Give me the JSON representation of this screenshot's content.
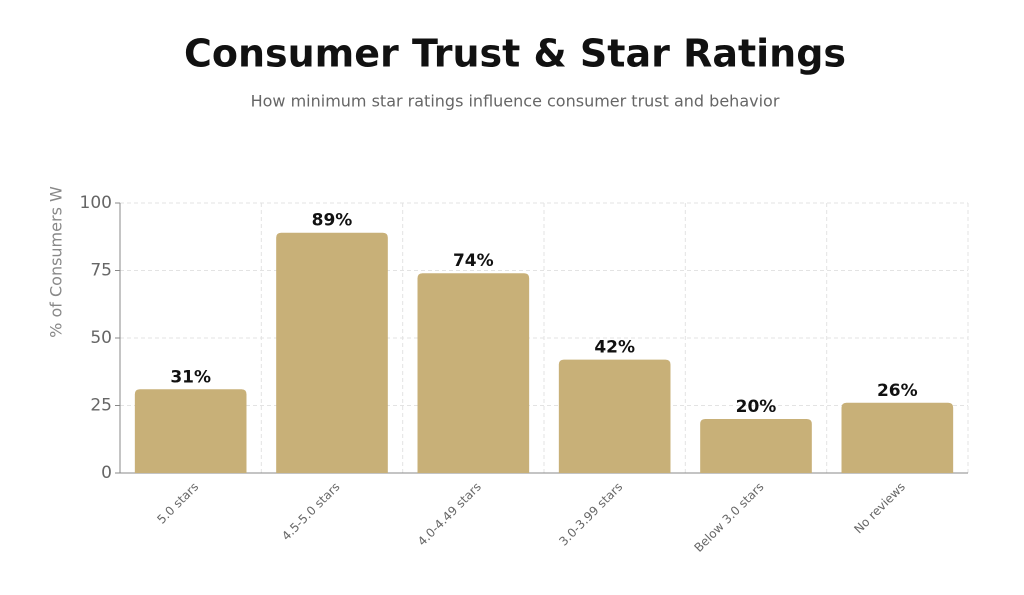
{
  "chart_data": {
    "type": "bar",
    "title": "Consumer Trust & Star Ratings",
    "subtitle": "How minimum star ratings influence consumer trust and behavior",
    "y_label": "% of Consumers W",
    "categories": [
      "5.0 stars",
      "4.5-5.0 stars",
      "4.0-4.49 stars",
      "3.0-3.99 stars",
      "Below 3.0 stars",
      "No reviews"
    ],
    "values": [
      31,
      89,
      74,
      42,
      20,
      26
    ],
    "value_labels": [
      "31%",
      "89%",
      "74%",
      "42%",
      "20%",
      "26%"
    ],
    "color": "#c8b078",
    "ylim": [
      0,
      100
    ],
    "yticks": [
      0,
      25,
      50,
      75,
      100
    ],
    "grid": true
  }
}
